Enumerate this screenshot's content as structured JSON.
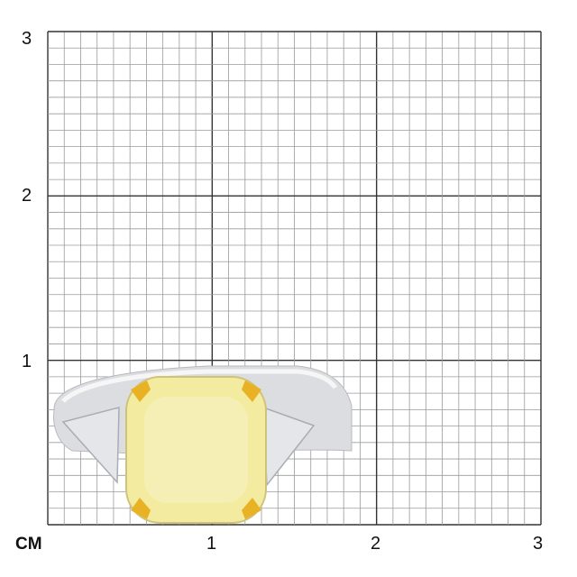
{
  "scale": {
    "unit_label": "CM",
    "x_ticks": [
      "1",
      "2",
      "3"
    ],
    "y_ticks": [
      "3",
      "2",
      "1"
    ],
    "range_cm": [
      0,
      3
    ],
    "minor_divisions_per_cm": 10
  },
  "product": {
    "description_icon": "ring-icon",
    "colors": {
      "center_stone": "#f3eba0",
      "prongs": "#e8b224",
      "band": "#d9dadd",
      "side_stones": "#e6e8ec"
    }
  }
}
